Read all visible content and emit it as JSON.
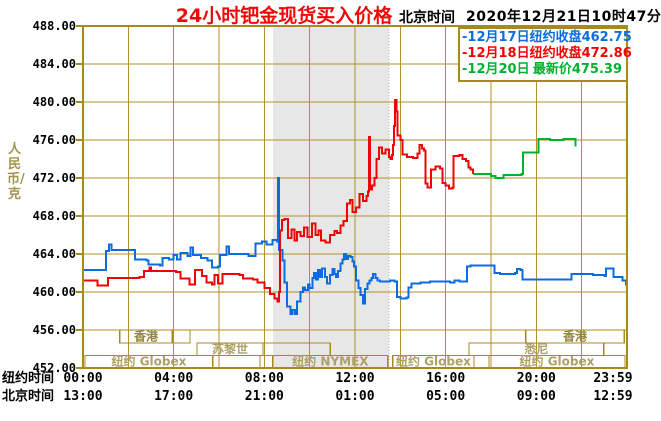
{
  "header": {
    "title": "24小时钯金现货买入价格",
    "clock_label": "北京时间",
    "timestamp": "2020年12月21日10时47分"
  },
  "legend": [
    {
      "date": "-12月17日",
      "label": "纽约收盘",
      "value": "462.75",
      "color": "#0b6ce0"
    },
    {
      "date": "-12月18日",
      "label": "纽约收盘",
      "value": "472.86",
      "color": "#ee0404"
    },
    {
      "date": "-12月20日",
      "label": "最新价",
      "value": "475.39",
      "color": "#00b22d"
    }
  ],
  "y_axis": {
    "unit_label": "人民币/克",
    "ticks": [
      "488.00",
      "484.00",
      "480.00",
      "476.00",
      "472.00",
      "468.00",
      "464.00",
      "460.00",
      "456.00",
      "452.00"
    ]
  },
  "x_axis": {
    "tick_hours": [
      0,
      4,
      8,
      12,
      16,
      20,
      23.983
    ],
    "rows": [
      {
        "label": "纽约时间",
        "ticks": [
          "00:00",
          "04:00",
          "08:00",
          "12:00",
          "16:00",
          "20:00",
          "23:59"
        ]
      },
      {
        "label": "北京时间",
        "ticks": [
          "13:00",
          "17:00",
          "21:00",
          "01:00",
          "05:00",
          "09:00",
          "12:59"
        ]
      }
    ]
  },
  "sessions": [
    {
      "row": 0,
      "start_hour": 1.63,
      "end_hour": 3.93,
      "label": "香港"
    },
    {
      "row": 0,
      "start_hour": 3.93,
      "end_hour": 4.72,
      "label": ""
    },
    {
      "row": 0,
      "start_hour": 19.54,
      "end_hour": 23.87,
      "label": "香港"
    },
    {
      "row": 1,
      "start_hour": 5.03,
      "end_hour": 7.94,
      "label": "苏黎世"
    },
    {
      "row": 1,
      "start_hour": 7.94,
      "end_hour": 10.9,
      "label": ""
    },
    {
      "row": 1,
      "start_hour": 17.03,
      "end_hour": 22.98,
      "label": "悉尼"
    },
    {
      "row": 2,
      "start_hour": 0.09,
      "end_hour": 5.73,
      "label": "纽约 Globex"
    },
    {
      "row": 2,
      "start_hour": 7.81,
      "end_hour": 8.38,
      "label": ""
    },
    {
      "row": 2,
      "start_hour": 8.38,
      "end_hour": 13.45,
      "label": "纽约 NYMEX"
    },
    {
      "row": 2,
      "start_hour": 13.67,
      "end_hour": 17.25,
      "label": "纽约 Globex"
    },
    {
      "row": 2,
      "start_hour": 17.25,
      "end_hour": 17.91,
      "label": ""
    },
    {
      "row": 2,
      "start_hour": 17.91,
      "end_hour": 23.91,
      "label": "纽约 Globex"
    }
  ],
  "shaded_band": {
    "start_hour": 8.38,
    "end_hour": 13.5
  },
  "colors": {
    "grid": "#b2922e",
    "border": "#a8891c",
    "session_label": "#ada164",
    "hk_label": "#8f8440",
    "band": "#e7e7e7",
    "band_edge": "#b5b5b5",
    "title": "#ee0909",
    "blue": "#0b6ce0",
    "red": "#ee0404",
    "green": "#00b22d"
  },
  "chart_data": {
    "type": "line",
    "title": "24小时钯金现货买入价格",
    "ylabel": "人民币/克",
    "ylim": [
      452,
      488
    ],
    "y_grid_step": 4,
    "xlim_hours": [
      0,
      24
    ],
    "x_grid_step_hours": 2,
    "grid": true,
    "legend_position": "top-right",
    "series": [
      {
        "name": "12月17日 纽约收盘 462.75",
        "color": "#0b6ce0",
        "points": [
          [
            0,
            462.3
          ],
          [
            0.95,
            462.3
          ],
          [
            1.02,
            464.3
          ],
          [
            1.15,
            465
          ],
          [
            1.25,
            464.4
          ],
          [
            2.2,
            464.4
          ],
          [
            2.3,
            463.4
          ],
          [
            2.8,
            463.3
          ],
          [
            2.9,
            462.9
          ],
          [
            3.4,
            462.8
          ],
          [
            3.5,
            463.6
          ],
          [
            3.8,
            463.4
          ],
          [
            4,
            463.9
          ],
          [
            4.15,
            463.4
          ],
          [
            4.3,
            464.1
          ],
          [
            4.6,
            463.8
          ],
          [
            4.75,
            464.7
          ],
          [
            4.85,
            463.9
          ],
          [
            5.2,
            463.6
          ],
          [
            5.5,
            463.3
          ],
          [
            5.7,
            462.6
          ],
          [
            5.95,
            462.7
          ],
          [
            6.05,
            463.9
          ],
          [
            6.28,
            463.9
          ],
          [
            6.34,
            464.8
          ],
          [
            6.45,
            464
          ],
          [
            7.3,
            463.8
          ],
          [
            7.6,
            465.1
          ],
          [
            7.9,
            465.3
          ],
          [
            8.1,
            465
          ],
          [
            8.35,
            465.5
          ],
          [
            8.55,
            465.3
          ],
          [
            8.6,
            472
          ],
          [
            8.65,
            464.4
          ],
          [
            8.8,
            463.3
          ],
          [
            8.9,
            461
          ],
          [
            9,
            458.5
          ],
          [
            9.15,
            457.7
          ],
          [
            9.25,
            458.1
          ],
          [
            9.35,
            457.7
          ],
          [
            9.45,
            459
          ],
          [
            9.6,
            460
          ],
          [
            9.7,
            460.5
          ],
          [
            9.8,
            460.2
          ],
          [
            9.92,
            460.8
          ],
          [
            10,
            460.4
          ],
          [
            10.12,
            461.5
          ],
          [
            10.2,
            462
          ],
          [
            10.28,
            461.3
          ],
          [
            10.37,
            462.3
          ],
          [
            10.46,
            461.6
          ],
          [
            10.55,
            462.5
          ],
          [
            10.67,
            461.6
          ],
          [
            10.76,
            460.9
          ],
          [
            10.9,
            461.8
          ],
          [
            11,
            462.4
          ],
          [
            11.1,
            461.9
          ],
          [
            11.16,
            461.6
          ],
          [
            11.25,
            462.2
          ],
          [
            11.35,
            463
          ],
          [
            11.45,
            463.4
          ],
          [
            11.52,
            464
          ],
          [
            11.6,
            463.5
          ],
          [
            11.7,
            463.8
          ],
          [
            11.8,
            463.7
          ],
          [
            11.88,
            463.2
          ],
          [
            11.96,
            462.7
          ],
          [
            12.05,
            461.2
          ],
          [
            12.15,
            460.4
          ],
          [
            12.25,
            459.7
          ],
          [
            12.35,
            458.8
          ],
          [
            12.45,
            460.3
          ],
          [
            12.55,
            460.9
          ],
          [
            12.65,
            461.2
          ],
          [
            12.72,
            461.5
          ],
          [
            12.8,
            461.9
          ],
          [
            12.9,
            461.5
          ],
          [
            13,
            461.2
          ],
          [
            13.1,
            461.1
          ],
          [
            13.55,
            461.2
          ],
          [
            13.75,
            461.1
          ],
          [
            13.85,
            459.5
          ],
          [
            14,
            459.3
          ],
          [
            14.28,
            459.4
          ],
          [
            14.35,
            460.5
          ],
          [
            14.5,
            460.9
          ],
          [
            14.9,
            461
          ],
          [
            15.3,
            461.1
          ],
          [
            16.2,
            461
          ],
          [
            16.4,
            461.2
          ],
          [
            16.6,
            461.1
          ],
          [
            16.85,
            461.1
          ],
          [
            16.95,
            462.7
          ],
          [
            17.1,
            462.8
          ],
          [
            18.05,
            462.8
          ],
          [
            18.15,
            462
          ],
          [
            18.4,
            461.9
          ],
          [
            19.05,
            462
          ],
          [
            19.15,
            462.4
          ],
          [
            19.3,
            462.3
          ],
          [
            19.4,
            461.3
          ],
          [
            21.45,
            461.3
          ],
          [
            21.55,
            461.9
          ],
          [
            22.5,
            461.8
          ],
          [
            23,
            461.7
          ],
          [
            23.07,
            462.5
          ],
          [
            23.35,
            462.5
          ],
          [
            23.4,
            461.6
          ],
          [
            23.75,
            461.6
          ],
          [
            23.8,
            461.2
          ],
          [
            23.92,
            461.2
          ],
          [
            23.96,
            460.8
          ],
          [
            24,
            460.8
          ]
        ]
      },
      {
        "name": "12月18日 纽约收盘 472.86",
        "color": "#ee0404",
        "points": [
          [
            0,
            461.2
          ],
          [
            0.6,
            461.2
          ],
          [
            0.65,
            460.7
          ],
          [
            1.05,
            460.7
          ],
          [
            1.1,
            461.5
          ],
          [
            2.5,
            461.6
          ],
          [
            2.7,
            462.2
          ],
          [
            2.93,
            462.6
          ],
          [
            3,
            462.2
          ],
          [
            4.1,
            462.1
          ],
          [
            4.3,
            461.4
          ],
          [
            4.7,
            460.8
          ],
          [
            4.95,
            462.3
          ],
          [
            5.25,
            461.7
          ],
          [
            5.45,
            461
          ],
          [
            5.7,
            460.8
          ],
          [
            5.8,
            461.8
          ],
          [
            5.95,
            460.9
          ],
          [
            6.15,
            461.9
          ],
          [
            6.9,
            461.8
          ],
          [
            7.05,
            461.4
          ],
          [
            7.5,
            461.3
          ],
          [
            7.7,
            461
          ],
          [
            8,
            460.4
          ],
          [
            8.25,
            459.8
          ],
          [
            8.45,
            459.3
          ],
          [
            8.57,
            459
          ],
          [
            8.65,
            460
          ],
          [
            8.7,
            466.5
          ],
          [
            8.78,
            467.6
          ],
          [
            8.88,
            467.7
          ],
          [
            9.05,
            465.7
          ],
          [
            9.2,
            466.6
          ],
          [
            9.33,
            465.4
          ],
          [
            9.45,
            466.3
          ],
          [
            9.6,
            465.9
          ],
          [
            9.75,
            466.8
          ],
          [
            9.9,
            465.8
          ],
          [
            10.1,
            467.2
          ],
          [
            10.25,
            466
          ],
          [
            10.4,
            466.5
          ],
          [
            10.5,
            465.4
          ],
          [
            10.7,
            465.2
          ],
          [
            10.9,
            466
          ],
          [
            11.1,
            466.4
          ],
          [
            11.2,
            466.2
          ],
          [
            11.35,
            467
          ],
          [
            11.5,
            467.5
          ],
          [
            11.65,
            469.3
          ],
          [
            11.78,
            469.7
          ],
          [
            11.9,
            468.4
          ],
          [
            12.05,
            468.9
          ],
          [
            12.2,
            470.3
          ],
          [
            12.35,
            469.6
          ],
          [
            12.5,
            470.1
          ],
          [
            12.58,
            470.6
          ],
          [
            12.62,
            476.3
          ],
          [
            12.66,
            470.8
          ],
          [
            12.75,
            471.2
          ],
          [
            12.85,
            472
          ],
          [
            12.95,
            474
          ],
          [
            13.05,
            475.2
          ],
          [
            13.2,
            474.6
          ],
          [
            13.35,
            475
          ],
          [
            13.5,
            474.2
          ],
          [
            13.57,
            474
          ],
          [
            13.63,
            474.4
          ],
          [
            13.68,
            475.5
          ],
          [
            13.72,
            477.5
          ],
          [
            13.76,
            480.2
          ],
          [
            13.82,
            479
          ],
          [
            13.88,
            476.5
          ],
          [
            14,
            476
          ],
          [
            14.1,
            474.5
          ],
          [
            14.3,
            474.2
          ],
          [
            14.55,
            474.1
          ],
          [
            14.75,
            474.6
          ],
          [
            14.85,
            475.5
          ],
          [
            14.95,
            475.1
          ],
          [
            15.05,
            474.9
          ],
          [
            15.1,
            471.4
          ],
          [
            15.2,
            471
          ],
          [
            15.35,
            472.9
          ],
          [
            15.55,
            473.2
          ],
          [
            15.75,
            473
          ],
          [
            15.85,
            471.5
          ],
          [
            16,
            471.2
          ],
          [
            16.15,
            470.9
          ],
          [
            16.3,
            471
          ],
          [
            16.35,
            474.3
          ],
          [
            16.6,
            474.4
          ],
          [
            16.75,
            474
          ],
          [
            16.9,
            473.8
          ],
          [
            17,
            473.1
          ],
          [
            17.1,
            472.9
          ],
          [
            17.2,
            472.4
          ]
        ]
      },
      {
        "name": "12月20日 最新价 475.39",
        "color": "#00b22d",
        "points": [
          [
            17.2,
            472.4
          ],
          [
            17.6,
            472.4
          ],
          [
            18,
            472.2
          ],
          [
            18.2,
            472
          ],
          [
            18.4,
            472
          ],
          [
            18.55,
            472.3
          ],
          [
            19.1,
            472.3
          ],
          [
            19.35,
            472.4
          ],
          [
            19.42,
            474.7
          ],
          [
            20.02,
            474.7
          ],
          [
            20.1,
            476.1
          ],
          [
            20.6,
            476
          ],
          [
            21.2,
            476.1
          ],
          [
            21.68,
            476.1
          ],
          [
            21.73,
            475.4
          ],
          [
            21.78,
            475.4
          ]
        ]
      }
    ]
  }
}
